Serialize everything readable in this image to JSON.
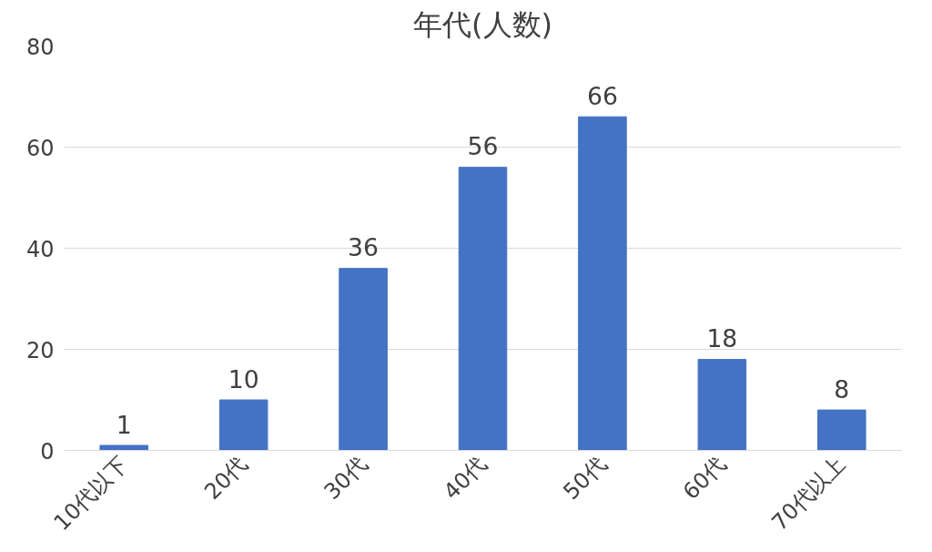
{
  "chart_data": {
    "type": "bar",
    "title": "年代(人数)",
    "categories": [
      "10代以下",
      "20代",
      "30代",
      "40代",
      "50代",
      "60代",
      "70代以上"
    ],
    "values": [
      1,
      10,
      36,
      56,
      66,
      18,
      8
    ],
    "color": "#4472c4",
    "ylim": [
      0,
      80
    ],
    "yticks": [
      0,
      20,
      40,
      60,
      80
    ],
    "grid": "y",
    "data_labels": true
  }
}
